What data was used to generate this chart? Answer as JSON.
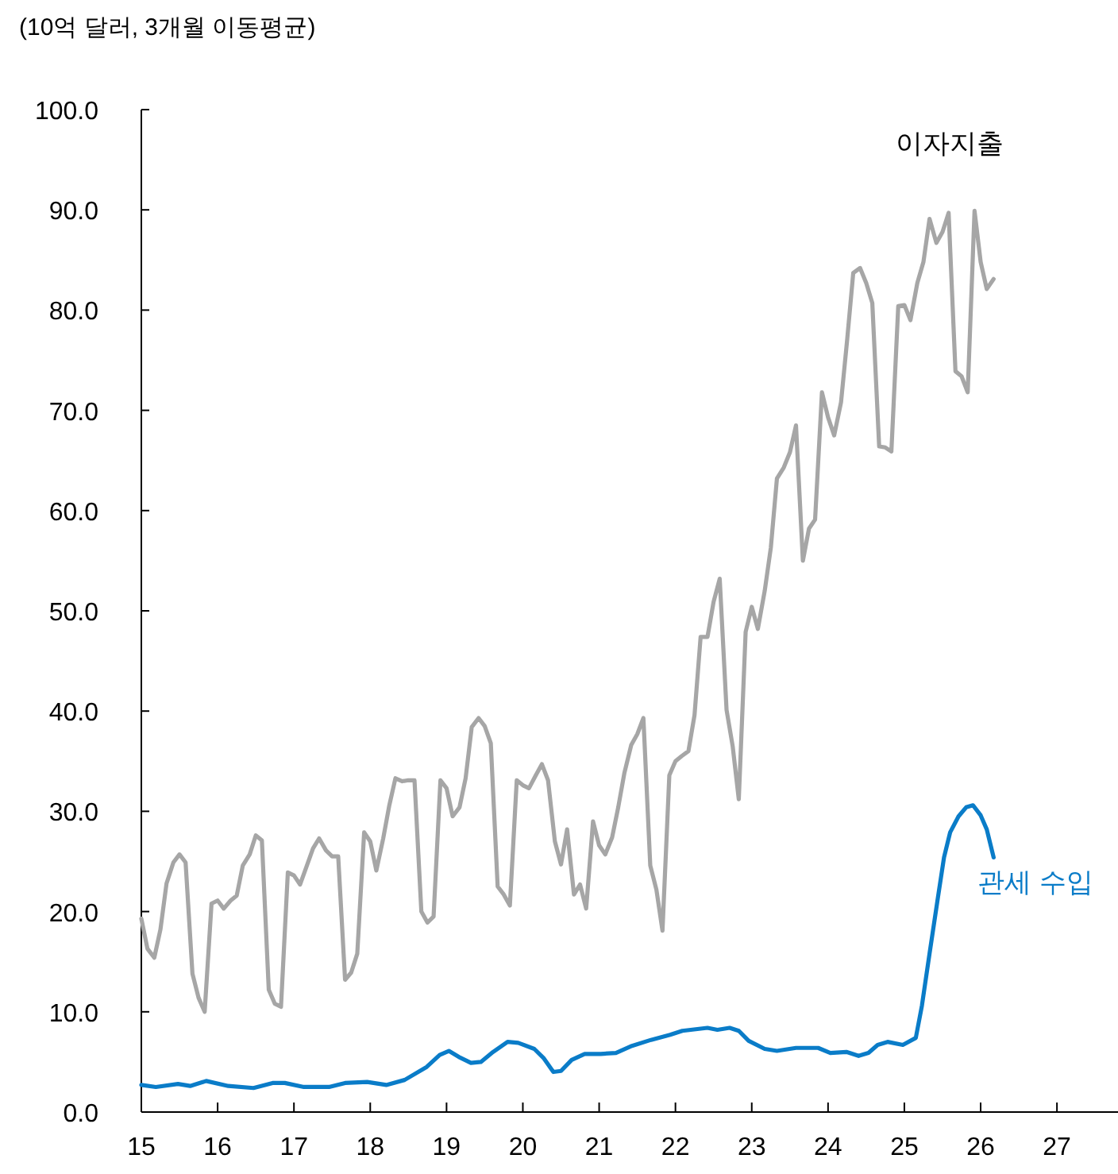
{
  "chart_data": {
    "type": "line",
    "ylabel": "(10억 달러, 3개월 이동평균)",
    "xlim": [
      15,
      27.8
    ],
    "xticks": [
      15,
      16,
      17,
      18,
      19,
      20,
      21,
      22,
      23,
      24,
      25,
      26,
      27
    ],
    "ylim": [
      0,
      100
    ],
    "yticks": [
      {
        "value": 0,
        "label": "0.0"
      },
      {
        "value": 10,
        "label": "10.0"
      },
      {
        "value": 20,
        "label": "20.0"
      },
      {
        "value": 30,
        "label": "30.0"
      },
      {
        "value": 40,
        "label": "40.0"
      },
      {
        "value": 50,
        "label": "50.0"
      },
      {
        "value": 60,
        "label": "60.0"
      },
      {
        "value": 70,
        "label": "70.0"
      },
      {
        "value": 80,
        "label": "80.0"
      },
      {
        "value": 90,
        "label": "90.0"
      },
      {
        "value": 100,
        "label": "100.0"
      }
    ],
    "grid": false,
    "legend": false,
    "marker": "none",
    "line_style": "solid",
    "series": [
      {
        "name": "이자지출",
        "color": "#a6a6a6",
        "x": [
          15,
          15.08,
          15.17,
          15.25,
          15.33,
          15.42,
          15.5,
          15.58,
          15.67,
          15.75,
          15.83,
          15.92,
          16,
          16.08,
          16.17,
          16.25,
          16.33,
          16.42,
          16.5,
          16.58,
          16.67,
          16.75,
          16.83,
          16.92,
          17,
          17.08,
          17.17,
          17.25,
          17.33,
          17.42,
          17.5,
          17.58,
          17.67,
          17.75,
          17.83,
          17.92,
          18,
          18.08,
          18.17,
          18.25,
          18.33,
          18.42,
          18.5,
          18.58,
          18.67,
          18.75,
          18.83,
          18.92,
          19,
          19.08,
          19.17,
          19.25,
          19.33,
          19.42,
          19.5,
          19.58,
          19.67,
          19.75,
          19.83,
          19.92,
          20,
          20.08,
          20.17,
          20.25,
          20.33,
          20.42,
          20.5,
          20.58,
          20.67,
          20.75,
          20.83,
          20.92,
          21,
          21.08,
          21.17,
          21.25,
          21.33,
          21.42,
          21.5,
          21.58,
          21.67,
          21.75,
          21.83,
          21.92,
          22,
          22.08,
          22.17,
          22.25,
          22.33,
          22.42,
          22.5,
          22.58,
          22.67,
          22.75,
          22.83,
          22.92,
          23,
          23.08,
          23.17,
          23.25,
          23.33,
          23.42,
          23.5,
          23.58,
          23.67,
          23.75,
          23.83,
          23.92,
          24,
          24.08,
          24.17,
          24.25,
          24.33,
          24.42,
          24.5,
          24.58,
          24.67,
          24.75,
          24.83,
          24.92,
          25,
          25.08,
          25.17,
          25.25,
          25.33,
          25.42,
          25.5,
          25.58,
          25.67,
          25.75,
          25.83,
          25.92,
          26,
          26.08,
          26.17
        ],
        "values": [
          19.3,
          16.3,
          15.4,
          18.2,
          22.8,
          24.9,
          25.7,
          24.9,
          13.8,
          11.4,
          10.0,
          20.8,
          21.1,
          20.3,
          21.1,
          21.6,
          24.6,
          25.7,
          27.6,
          27.1,
          12.2,
          10.8,
          10.5,
          23.9,
          23.6,
          22.7,
          24.6,
          26.3,
          27.3,
          26.1,
          25.5,
          25.5,
          13.2,
          13.9,
          15.8,
          27.9,
          27.0,
          24.1,
          27.3,
          30.6,
          33.3,
          33.0,
          33.1,
          33.1,
          20.0,
          18.9,
          19.5,
          33.1,
          32.3,
          29.5,
          30.4,
          33.3,
          38.4,
          39.3,
          38.5,
          36.8,
          22.5,
          21.7,
          20.6,
          33.1,
          32.6,
          32.3,
          33.6,
          34.7,
          33.1,
          27.0,
          24.7,
          28.2,
          21.7,
          22.7,
          20.3,
          29.0,
          26.6,
          25.7,
          27.4,
          30.4,
          33.8,
          36.6,
          37.7,
          39.3,
          24.6,
          22.2,
          18.1,
          33.6,
          35.0,
          35.5,
          36.0,
          39.6,
          47.4,
          47.4,
          50.9,
          53.2,
          40.1,
          36.5,
          31.2,
          47.9,
          50.4,
          48.2,
          52.0,
          56.3,
          63.2,
          64.3,
          65.8,
          68.5,
          55.0,
          58.2,
          59.1,
          71.8,
          69.3,
          67.5,
          70.8,
          77.0,
          83.7,
          84.2,
          82.7,
          80.7,
          66.4,
          66.3,
          65.9,
          80.4,
          80.5,
          79.0,
          82.7,
          84.8,
          89.1,
          86.7,
          87.8,
          89.7,
          73.9,
          73.4,
          71.8,
          89.9,
          84.8,
          82.1,
          83.1
        ]
      },
      {
        "name": "관세 수입",
        "color": "#0a7cc8",
        "x": [
          15,
          15.19,
          15.48,
          15.64,
          15.85,
          16.14,
          16.47,
          16.72,
          16.88,
          17.13,
          17.46,
          17.67,
          17.96,
          18.21,
          18.45,
          18.74,
          18.91,
          19.03,
          19.16,
          19.32,
          19.45,
          19.61,
          19.8,
          19.94,
          20.15,
          20.27,
          20.4,
          20.5,
          20.64,
          20.81,
          21.02,
          21.22,
          21.43,
          21.68,
          21.93,
          22.09,
          22.42,
          22.55,
          22.71,
          22.83,
          22.96,
          23.17,
          23.33,
          23.58,
          23.87,
          24.03,
          24.24,
          24.4,
          24.53,
          24.65,
          24.78,
          24.98,
          25.15,
          25.23,
          25.33,
          25.44,
          25.52,
          25.6,
          25.71,
          25.81,
          25.9,
          26,
          26.08,
          26.17
        ],
        "values": [
          2.7,
          2.5,
          2.8,
          2.6,
          3.1,
          2.6,
          2.4,
          2.9,
          2.9,
          2.5,
          2.5,
          2.9,
          3.0,
          2.7,
          3.2,
          4.5,
          5.7,
          6.1,
          5.5,
          4.9,
          5.0,
          6.0,
          7.0,
          6.9,
          6.3,
          5.4,
          4.0,
          4.1,
          5.2,
          5.8,
          5.8,
          5.9,
          6.6,
          7.2,
          7.7,
          8.1,
          8.4,
          8.2,
          8.4,
          8.1,
          7.1,
          6.3,
          6.1,
          6.4,
          6.4,
          5.9,
          6.0,
          5.6,
          5.9,
          6.7,
          7.0,
          6.7,
          7.4,
          10.6,
          15.8,
          21.4,
          25.4,
          27.9,
          29.5,
          30.4,
          30.6,
          29.6,
          28.2,
          25.4
        ]
      }
    ]
  }
}
